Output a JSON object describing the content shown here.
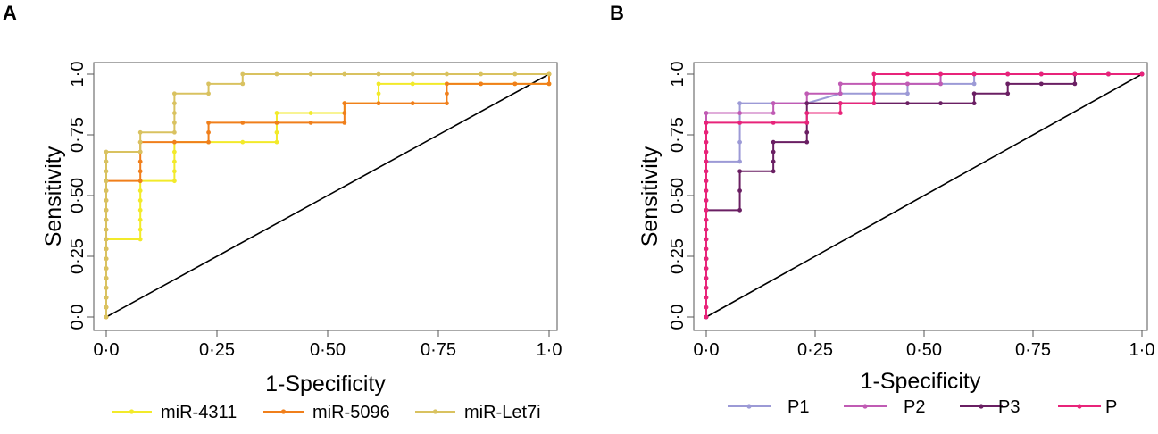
{
  "chart_data": [
    {
      "panel": "A",
      "type": "line",
      "xlabel": "1-Specificity",
      "ylabel": "Sensitivity",
      "xlim": [
        0,
        1
      ],
      "ylim": [
        0,
        1
      ],
      "xticks": [
        "0·0",
        "0·25",
        "0·50",
        "0·75",
        "1·0"
      ],
      "yticks": [
        "0·0",
        "0·25",
        "0·50",
        "0·75",
        "1·0"
      ],
      "reference_line": [
        [
          0,
          0
        ],
        [
          1,
          1
        ]
      ],
      "legend_position": "bottom",
      "series": [
        {
          "name": "miR-4311",
          "color": "#f2ea2a",
          "points": [
            [
              0,
              0
            ],
            [
              0,
              0.04
            ],
            [
              0,
              0.08
            ],
            [
              0,
              0.12
            ],
            [
              0,
              0.16
            ],
            [
              0,
              0.2
            ],
            [
              0,
              0.24
            ],
            [
              0,
              0.28
            ],
            [
              0,
              0.32
            ],
            [
              0.077,
              0.32
            ],
            [
              0.077,
              0.36
            ],
            [
              0.077,
              0.4
            ],
            [
              0.077,
              0.44
            ],
            [
              0.077,
              0.48
            ],
            [
              0.077,
              0.52
            ],
            [
              0.077,
              0.56
            ],
            [
              0.154,
              0.56
            ],
            [
              0.154,
              0.6
            ],
            [
              0.154,
              0.64
            ],
            [
              0.154,
              0.68
            ],
            [
              0.154,
              0.72
            ],
            [
              0.231,
              0.72
            ],
            [
              0.308,
              0.72
            ],
            [
              0.385,
              0.72
            ],
            [
              0.385,
              0.76
            ],
            [
              0.385,
              0.8
            ],
            [
              0.385,
              0.84
            ],
            [
              0.462,
              0.84
            ],
            [
              0.538,
              0.84
            ],
            [
              0.538,
              0.88
            ],
            [
              0.615,
              0.88
            ],
            [
              0.615,
              0.92
            ],
            [
              0.615,
              0.96
            ],
            [
              0.692,
              0.96
            ],
            [
              0.769,
              0.96
            ],
            [
              0.846,
              0.96
            ],
            [
              0.923,
              0.96
            ],
            [
              1,
              0.96
            ],
            [
              1,
              1
            ]
          ]
        },
        {
          "name": "miR-5096",
          "color": "#f07f1b",
          "points": [
            [
              0,
              0
            ],
            [
              0,
              0.04
            ],
            [
              0,
              0.08
            ],
            [
              0,
              0.12
            ],
            [
              0,
              0.16
            ],
            [
              0,
              0.2
            ],
            [
              0,
              0.24
            ],
            [
              0,
              0.28
            ],
            [
              0,
              0.32
            ],
            [
              0,
              0.36
            ],
            [
              0,
              0.4
            ],
            [
              0,
              0.44
            ],
            [
              0,
              0.48
            ],
            [
              0,
              0.52
            ],
            [
              0,
              0.56
            ],
            [
              0.077,
              0.56
            ],
            [
              0.077,
              0.6
            ],
            [
              0.077,
              0.64
            ],
            [
              0.077,
              0.68
            ],
            [
              0.077,
              0.72
            ],
            [
              0.154,
              0.72
            ],
            [
              0.231,
              0.72
            ],
            [
              0.231,
              0.76
            ],
            [
              0.231,
              0.8
            ],
            [
              0.308,
              0.8
            ],
            [
              0.385,
              0.8
            ],
            [
              0.462,
              0.8
            ],
            [
              0.538,
              0.8
            ],
            [
              0.538,
              0.84
            ],
            [
              0.538,
              0.88
            ],
            [
              0.615,
              0.88
            ],
            [
              0.692,
              0.88
            ],
            [
              0.769,
              0.88
            ],
            [
              0.769,
              0.92
            ],
            [
              0.769,
              0.96
            ],
            [
              0.846,
              0.96
            ],
            [
              0.923,
              0.96
            ],
            [
              1,
              0.96
            ],
            [
              1,
              1
            ]
          ]
        },
        {
          "name": "miR-Let7i",
          "color": "#d9c260",
          "points": [
            [
              0,
              0
            ],
            [
              0,
              0.04
            ],
            [
              0,
              0.08
            ],
            [
              0,
              0.12
            ],
            [
              0,
              0.16
            ],
            [
              0,
              0.2
            ],
            [
              0,
              0.24
            ],
            [
              0,
              0.28
            ],
            [
              0,
              0.32
            ],
            [
              0,
              0.36
            ],
            [
              0,
              0.4
            ],
            [
              0,
              0.44
            ],
            [
              0,
              0.48
            ],
            [
              0,
              0.52
            ],
            [
              0,
              0.56
            ],
            [
              0,
              0.6
            ],
            [
              0,
              0.64
            ],
            [
              0,
              0.68
            ],
            [
              0.077,
              0.68
            ],
            [
              0.077,
              0.72
            ],
            [
              0.077,
              0.76
            ],
            [
              0.154,
              0.76
            ],
            [
              0.154,
              0.8
            ],
            [
              0.154,
              0.84
            ],
            [
              0.154,
              0.88
            ],
            [
              0.154,
              0.92
            ],
            [
              0.231,
              0.92
            ],
            [
              0.231,
              0.96
            ],
            [
              0.308,
              0.96
            ],
            [
              0.308,
              1
            ],
            [
              0.385,
              1
            ],
            [
              0.462,
              1
            ],
            [
              0.538,
              1
            ],
            [
              0.615,
              1
            ],
            [
              0.692,
              1
            ],
            [
              0.769,
              1
            ],
            [
              0.846,
              1
            ],
            [
              0.923,
              1
            ],
            [
              1,
              1
            ]
          ]
        }
      ]
    },
    {
      "panel": "B",
      "type": "line",
      "xlabel": "1-Specificity",
      "ylabel": "Sensitivity",
      "xlim": [
        0,
        1
      ],
      "ylim": [
        0,
        1
      ],
      "xticks": [
        "0·0",
        "0·25",
        "0·50",
        "0·75",
        "1·0"
      ],
      "yticks": [
        "0·0",
        "0·25",
        "0·50",
        "0·75",
        "1·0"
      ],
      "reference_line": [
        [
          0,
          0
        ],
        [
          1,
          1
        ]
      ],
      "legend_position": "bottom",
      "series": [
        {
          "name": "P1",
          "color": "#9c9ad6",
          "points": [
            [
              0,
              0
            ],
            [
              0,
              0.16
            ],
            [
              0,
              0.32
            ],
            [
              0,
              0.48
            ],
            [
              0,
              0.64
            ],
            [
              0.077,
              0.64
            ],
            [
              0.077,
              0.72
            ],
            [
              0.077,
              0.8
            ],
            [
              0.077,
              0.88
            ],
            [
              0.154,
              0.88
            ],
            [
              0.231,
              0.88
            ],
            [
              0.308,
              0.92
            ],
            [
              0.385,
              0.92
            ],
            [
              0.462,
              0.92
            ],
            [
              0.462,
              0.96
            ],
            [
              0.538,
              0.96
            ],
            [
              0.615,
              0.96
            ],
            [
              0.615,
              1
            ],
            [
              0.692,
              1
            ],
            [
              0.769,
              1
            ],
            [
              0.846,
              1
            ],
            [
              0.923,
              1
            ],
            [
              1,
              1
            ]
          ]
        },
        {
          "name": "P2",
          "color": "#c05bb4",
          "points": [
            [
              0,
              0
            ],
            [
              0,
              0.2
            ],
            [
              0,
              0.4
            ],
            [
              0,
              0.6
            ],
            [
              0,
              0.8
            ],
            [
              0,
              0.84
            ],
            [
              0.077,
              0.84
            ],
            [
              0.154,
              0.84
            ],
            [
              0.154,
              0.88
            ],
            [
              0.231,
              0.88
            ],
            [
              0.231,
              0.92
            ],
            [
              0.308,
              0.92
            ],
            [
              0.308,
              0.96
            ],
            [
              0.385,
              0.96
            ],
            [
              0.462,
              0.96
            ],
            [
              0.538,
              0.96
            ],
            [
              0.538,
              1
            ],
            [
              0.615,
              1
            ],
            [
              0.692,
              1
            ],
            [
              0.769,
              1
            ],
            [
              0.846,
              1
            ],
            [
              0.923,
              1
            ],
            [
              1,
              1
            ]
          ]
        },
        {
          "name": "P3",
          "color": "#6a1f63",
          "points": [
            [
              0,
              0
            ],
            [
              0,
              0.12
            ],
            [
              0,
              0.24
            ],
            [
              0,
              0.36
            ],
            [
              0,
              0.44
            ],
            [
              0.077,
              0.44
            ],
            [
              0.077,
              0.52
            ],
            [
              0.077,
              0.6
            ],
            [
              0.154,
              0.6
            ],
            [
              0.154,
              0.64
            ],
            [
              0.154,
              0.68
            ],
            [
              0.154,
              0.72
            ],
            [
              0.231,
              0.72
            ],
            [
              0.231,
              0.76
            ],
            [
              0.231,
              0.8
            ],
            [
              0.231,
              0.84
            ],
            [
              0.231,
              0.88
            ],
            [
              0.308,
              0.88
            ],
            [
              0.385,
              0.88
            ],
            [
              0.462,
              0.88
            ],
            [
              0.538,
              0.88
            ],
            [
              0.615,
              0.88
            ],
            [
              0.615,
              0.92
            ],
            [
              0.692,
              0.92
            ],
            [
              0.692,
              0.96
            ],
            [
              0.769,
              0.96
            ],
            [
              0.846,
              0.96
            ],
            [
              0.846,
              1
            ],
            [
              0.923,
              1
            ],
            [
              1,
              1
            ]
          ]
        },
        {
          "name": "P",
          "color": "#e8247a",
          "points": [
            [
              0,
              0
            ],
            [
              0,
              0.04
            ],
            [
              0,
              0.08
            ],
            [
              0,
              0.12
            ],
            [
              0,
              0.16
            ],
            [
              0,
              0.2
            ],
            [
              0,
              0.24
            ],
            [
              0,
              0.28
            ],
            [
              0,
              0.32
            ],
            [
              0,
              0.36
            ],
            [
              0,
              0.4
            ],
            [
              0,
              0.44
            ],
            [
              0,
              0.48
            ],
            [
              0,
              0.52
            ],
            [
              0,
              0.56
            ],
            [
              0,
              0.6
            ],
            [
              0,
              0.64
            ],
            [
              0,
              0.68
            ],
            [
              0,
              0.72
            ],
            [
              0,
              0.76
            ],
            [
              0,
              0.8
            ],
            [
              0.077,
              0.8
            ],
            [
              0.154,
              0.8
            ],
            [
              0.231,
              0.8
            ],
            [
              0.231,
              0.84
            ],
            [
              0.308,
              0.84
            ],
            [
              0.308,
              0.88
            ],
            [
              0.385,
              0.88
            ],
            [
              0.385,
              0.92
            ],
            [
              0.385,
              0.96
            ],
            [
              0.385,
              1
            ],
            [
              0.462,
              1
            ],
            [
              0.538,
              1
            ],
            [
              0.615,
              1
            ],
            [
              0.692,
              1
            ],
            [
              0.769,
              1
            ],
            [
              0.846,
              1
            ],
            [
              0.923,
              1
            ],
            [
              1,
              1
            ]
          ]
        }
      ]
    }
  ]
}
